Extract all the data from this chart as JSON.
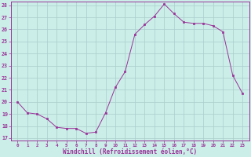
{
  "hours": [
    0,
    1,
    2,
    3,
    4,
    5,
    6,
    7,
    8,
    9,
    10,
    11,
    12,
    13,
    14,
    15,
    16,
    17,
    18,
    19,
    20,
    21,
    22,
    23
  ],
  "values": [
    20.0,
    19.1,
    19.0,
    18.6,
    17.9,
    17.8,
    17.8,
    17.4,
    17.5,
    19.1,
    21.2,
    22.5,
    25.6,
    26.4,
    27.1,
    28.1,
    27.3,
    26.6,
    26.5,
    26.5,
    26.3,
    25.8,
    22.2,
    20.7
  ],
  "line_color": "#993399",
  "marker": "s",
  "marker_size": 2.0,
  "background_color": "#cceee8",
  "grid_color": "#aacccc",
  "xlabel": "Windchill (Refroidissement éolien,°C)",
  "ylim_min": 16.8,
  "ylim_max": 28.3,
  "yticks": [
    17,
    18,
    19,
    20,
    21,
    22,
    23,
    24,
    25,
    26,
    27,
    28
  ],
  "xticks": [
    0,
    1,
    2,
    3,
    4,
    5,
    6,
    7,
    8,
    9,
    10,
    11,
    12,
    13,
    14,
    15,
    16,
    17,
    18,
    19,
    20,
    21,
    22,
    23
  ],
  "tick_color": "#993399",
  "label_color": "#993399",
  "spine_color": "#993399",
  "xtick_fontsize": 4.2,
  "ytick_fontsize": 4.8,
  "xlabel_fontsize": 5.5
}
